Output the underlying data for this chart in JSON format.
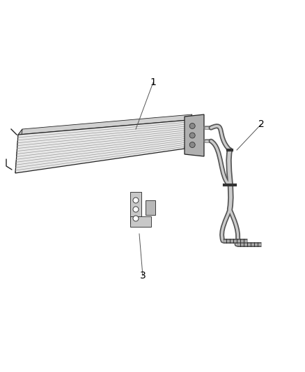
{
  "background_color": "#ffffff",
  "figure_width": 4.38,
  "figure_height": 5.33,
  "dpi": 100,
  "label_1": "1",
  "label_2": "2",
  "label_3": "3",
  "line_color": "#222222",
  "annotation_color": "#000000",
  "font_size": 10
}
